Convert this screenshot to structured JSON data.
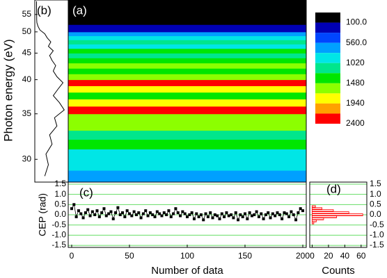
{
  "chart_data": [
    {
      "type": "heatmap",
      "label": "(a)",
      "ylabel": "Photon energy (eV)",
      "yscale": "reciprocal",
      "ylim": [
        28,
        60
      ],
      "yticks": [
        30,
        35,
        40,
        45,
        50,
        55
      ],
      "xlim": [
        -3,
        203
      ],
      "energies": [
        28.5,
        29.5,
        30.5,
        31.5,
        32.5,
        33.5,
        34.5,
        35.5,
        36.5,
        37.5,
        38.5,
        39.5,
        40.5,
        41.5,
        42.5,
        43.5,
        44.5,
        45.5,
        46.5,
        47.5,
        48.5,
        49.5,
        50.5,
        51.5,
        52.5,
        53.5,
        54.5,
        55.5,
        56.5,
        57.5,
        58.5,
        59.5
      ],
      "values": [
        700,
        1000,
        800,
        1300,
        1100,
        1700,
        1500,
        2300,
        1900,
        1400,
        1800,
        2200,
        1700,
        1400,
        1600,
        1300,
        1100,
        1400,
        1000,
        1200,
        900,
        700,
        300,
        150,
        60,
        40,
        40,
        35,
        30,
        30,
        30,
        30
      ],
      "colorbar": {
        "levels": [
          100,
          330,
          560,
          790,
          1020,
          1250,
          1480,
          1710,
          1940,
          2170,
          2400
        ],
        "ticks": [
          {
            "value": 100,
            "label": "100.0"
          },
          {
            "value": 560,
            "label": "560.0"
          },
          1020,
          1480,
          1940,
          2400
        ],
        "colors": [
          "#000000",
          "#0000b4",
          "#0046ff",
          "#00a0ff",
          "#00e6e6",
          "#00e68c",
          "#00e600",
          "#8cff00",
          "#ffff00",
          "#ffa000",
          "#ff0000"
        ]
      }
    },
    {
      "type": "profile",
      "label": "(b)",
      "color": "#000000"
    },
    {
      "type": "line",
      "label": "(c)",
      "ylabel": "CEP (rad)",
      "xlabel": "Number of data",
      "xlim": [
        -3,
        203
      ],
      "xticks": [
        0,
        50,
        100,
        150,
        200
      ],
      "ylim": [
        -1.6,
        1.6
      ],
      "yticks": [
        {
          "value": -1.5,
          "label": "-1.5"
        },
        {
          "value": -1,
          "label": "-1.0"
        },
        {
          "value": -0.5,
          "label": "-0.5"
        },
        {
          "value": 0,
          "label": "0.0"
        },
        {
          "value": 0.5,
          "label": "0.5"
        },
        {
          "value": 1,
          "label": "1.0"
        },
        {
          "value": 1.5,
          "label": "1.5"
        }
      ],
      "grid": true,
      "grid_color": "#66dd66",
      "color": "#000000",
      "x": [
        0,
        2,
        4,
        6,
        8,
        10,
        12,
        14,
        16,
        18,
        20,
        22,
        24,
        26,
        28,
        30,
        32,
        34,
        36,
        38,
        40,
        42,
        44,
        46,
        48,
        50,
        52,
        54,
        56,
        58,
        60,
        62,
        64,
        66,
        68,
        70,
        72,
        74,
        76,
        78,
        80,
        82,
        84,
        86,
        88,
        90,
        92,
        94,
        96,
        98,
        100,
        102,
        104,
        106,
        108,
        110,
        112,
        114,
        116,
        118,
        120,
        122,
        124,
        126,
        128,
        130,
        132,
        134,
        136,
        138,
        140,
        142,
        144,
        146,
        148,
        150,
        152,
        154,
        156,
        158,
        160,
        162,
        164,
        166,
        168,
        170,
        172,
        174,
        176,
        178,
        180,
        182,
        184,
        186,
        188,
        190,
        192,
        194,
        196,
        198,
        200
      ],
      "values": [
        0.3,
        0.5,
        -0.1,
        0.2,
        0.05,
        -0.15,
        0.1,
        0.25,
        -0.05,
        0.15,
        0.0,
        0.2,
        -0.1,
        0.1,
        0.3,
        -0.05,
        0.05,
        0.15,
        -0.2,
        0.1,
        0.35,
        0.0,
        0.1,
        -0.1,
        0.2,
        0.05,
        -0.05,
        0.15,
        0.0,
        0.1,
        -0.15,
        0.05,
        0.2,
        -0.05,
        0.1,
        0.0,
        -0.1,
        0.15,
        0.05,
        -0.05,
        0.1,
        0.0,
        0.2,
        -0.1,
        0.05,
        0.3,
        0.1,
        -0.05,
        0.15,
        0.05,
        -0.1,
        0.0,
        0.1,
        -0.2,
        0.05,
        -0.1,
        0.0,
        -0.25,
        0.05,
        -0.1,
        0.1,
        -0.15,
        0.0,
        -0.05,
        -0.2,
        0.05,
        -0.1,
        0.1,
        -0.05,
        0.0,
        -0.15,
        0.1,
        -0.25,
        0.0,
        -0.1,
        0.05,
        -0.2,
        0.1,
        -0.05,
        0.0,
        0.15,
        -0.1,
        0.05,
        -0.2,
        0.0,
        0.1,
        -0.15,
        0.05,
        -0.05,
        0.1,
        0.0,
        -0.2,
        0.1,
        0.05,
        -0.1,
        0.15,
        0.0,
        -0.25,
        0.1,
        0.3,
        0.2
      ]
    },
    {
      "type": "histogram",
      "orientation": "horizontal",
      "label": "(d)",
      "xlabel": "Counts",
      "xlim": [
        -3,
        67
      ],
      "xticks": [
        0,
        20,
        40,
        60
      ],
      "ylim": [
        -1.6,
        1.6
      ],
      "yticks": [
        {
          "value": -1.5,
          "label": "-1.5"
        },
        {
          "value": -1,
          "label": "-1.0"
        },
        {
          "value": -0.5,
          "label": "-0.5"
        },
        {
          "value": 0,
          "label": "0.0"
        },
        {
          "value": 0.5,
          "label": "0.5"
        },
        {
          "value": 1,
          "label": "1.0"
        },
        {
          "value": 1.5,
          "label": "1.5"
        }
      ],
      "grid": true,
      "grid_color": "#66dd66",
      "color": "#ff0000",
      "hatch": true,
      "bins": [
        -0.45,
        -0.35,
        -0.25,
        -0.15,
        -0.05,
        0.05,
        0.15,
        0.25,
        0.35,
        0.45
      ],
      "counts": [
        2,
        5,
        14,
        30,
        62,
        45,
        26,
        12,
        4
      ]
    }
  ]
}
